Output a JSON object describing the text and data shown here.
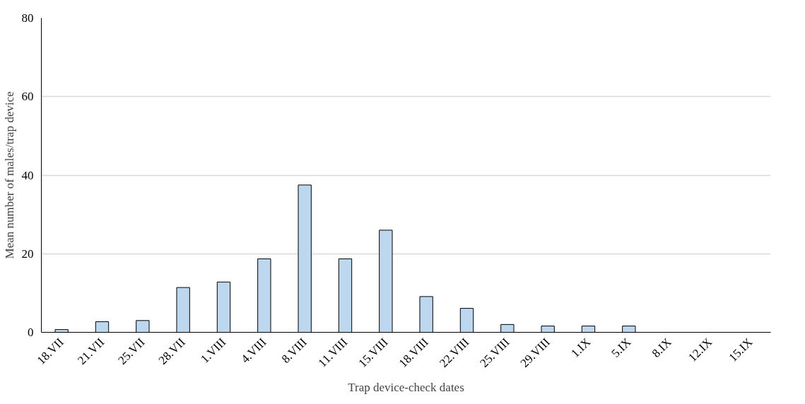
{
  "chart_data": {
    "type": "bar",
    "xlabel": "Trap device-check dates",
    "ylabel": "Mean number of males/trap device",
    "categories": [
      "18.VII",
      "21.VII",
      "25.VII",
      "28.VII",
      "1.VIII",
      "4.VIII",
      "8.VIII",
      "11.VIII",
      "15.VIII",
      "18.VIII",
      "22.VIII",
      "25.VIII",
      "29.VIII",
      "1.IX",
      "5.IX",
      "8.IX",
      "12.IX",
      "15.IX"
    ],
    "values": [
      0.7,
      2.7,
      3.0,
      11.4,
      12.8,
      18.7,
      37.5,
      18.7,
      26.0,
      9.1,
      6.1,
      2.0,
      1.6,
      1.6,
      1.6,
      0,
      0,
      0
    ],
    "color": "#bdd7ee",
    "ylim": [
      0,
      80
    ],
    "yticks": [
      0,
      20,
      40,
      60,
      80
    ],
    "grid": "y"
  }
}
